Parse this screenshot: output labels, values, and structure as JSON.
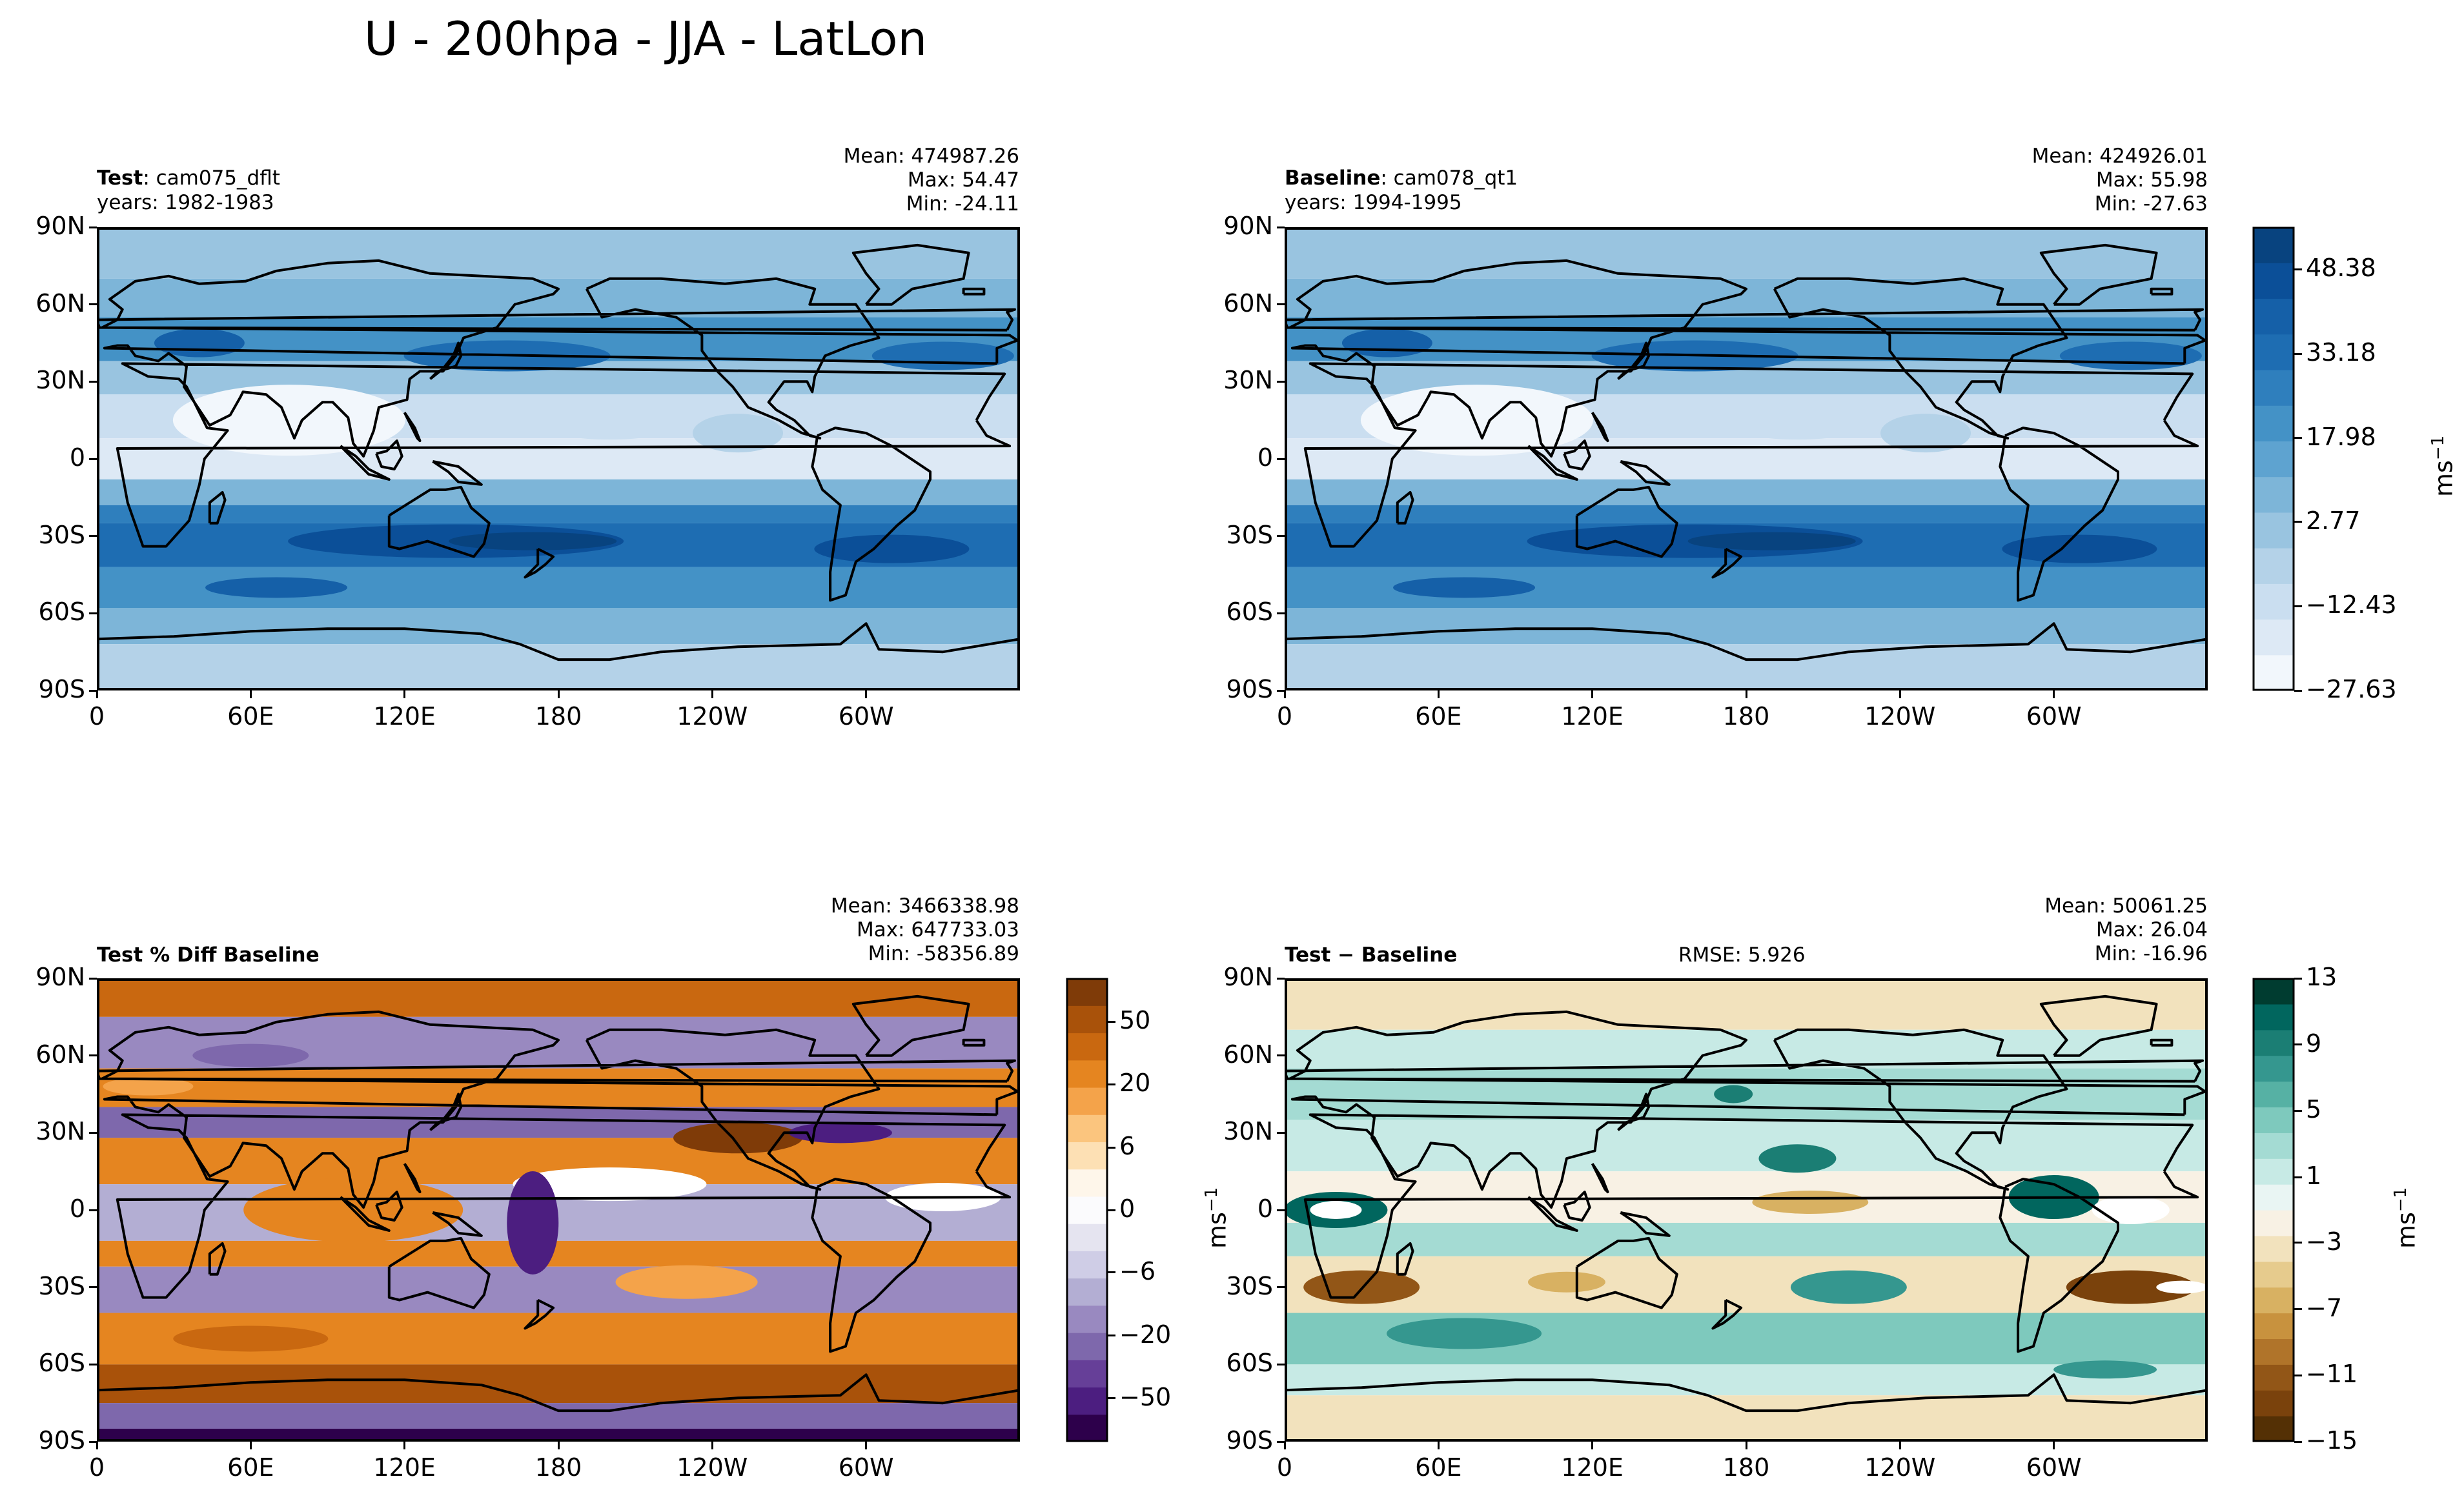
{
  "title": "U - 200hpa - JJA - LatLon",
  "chart_data": [
    {
      "id": "test",
      "type": "heatmap",
      "label_bold": "Test",
      "label_rest": ": cam075_dflt",
      "years": "years: 1982-1983",
      "stats": {
        "mean": "Mean: 474987.26",
        "max": "Max: 54.47",
        "min": "Min: -24.11"
      },
      "xticks": [
        "0",
        "60E",
        "120E",
        "180",
        "120W",
        "60W"
      ],
      "yticks": [
        "90N",
        "60N",
        "30N",
        "0",
        "30S",
        "60S",
        "90S"
      ],
      "colormap": "blues",
      "range": [
        -27.63,
        55.98
      ]
    },
    {
      "id": "baseline",
      "type": "heatmap",
      "label_bold": "Baseline",
      "label_rest": ": cam078_qt1",
      "years": "years: 1994-1995",
      "stats": {
        "mean": "Mean: 424926.01",
        "max": "Max: 55.98",
        "min": "Min: -27.63"
      },
      "xticks": [
        "0",
        "60E",
        "120E",
        "180",
        "120W",
        "60W"
      ],
      "yticks": [
        "90N",
        "60N",
        "30N",
        "0",
        "30S",
        "60S",
        "90S"
      ],
      "colormap": "blues",
      "range": [
        -27.63,
        55.98
      ],
      "colorbar": {
        "ticks": [
          "48.38",
          "33.18",
          "17.98",
          "2.77",
          "−12.43",
          "−27.63"
        ],
        "unit": "ms",
        "unit_exp": "−1"
      }
    },
    {
      "id": "pctdiff",
      "type": "heatmap",
      "label_bold": "Test % Diff Baseline",
      "stats": {
        "mean": "Mean: 3466338.98",
        "max": "Max: 647733.03",
        "min": "Min: -58356.89"
      },
      "xticks": [
        "0",
        "60E",
        "120E",
        "180",
        "120W",
        "60W"
      ],
      "yticks": [
        "90N",
        "60N",
        "30N",
        "0",
        "30S",
        "60S",
        "90S"
      ],
      "colormap": "PuOr",
      "colorbar": {
        "ticks": [
          "50",
          "20",
          "6",
          "0",
          "−6",
          "−20",
          "−50"
        ],
        "unit": "ms",
        "unit_exp": "−1"
      }
    },
    {
      "id": "diff",
      "type": "heatmap",
      "label_bold": "Test − Baseline",
      "rmse": "RMSE: 5.926",
      "stats": {
        "mean": "Mean: 50061.25",
        "max": "Max: 26.04",
        "min": "Min: -16.96"
      },
      "xticks": [
        "0",
        "60E",
        "120E",
        "180",
        "120W",
        "60W"
      ],
      "yticks": [
        "90N",
        "60N",
        "30N",
        "0",
        "30S",
        "60S",
        "90S"
      ],
      "colormap": "BrBG",
      "colorbar": {
        "ticks": [
          "13",
          "9",
          "5",
          "1",
          "−3",
          "−7",
          "−11",
          "−15"
        ],
        "unit": "ms",
        "unit_exp": "−1"
      }
    }
  ]
}
